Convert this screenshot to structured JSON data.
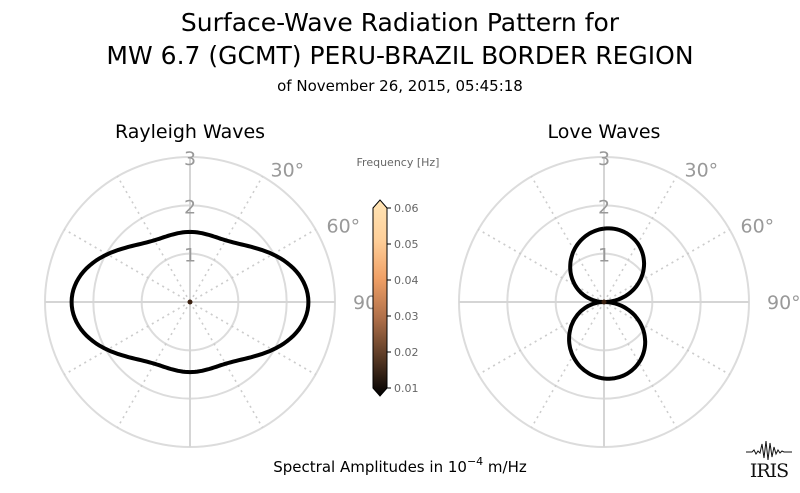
{
  "title": {
    "line1": "Surface-Wave Radiation Pattern for",
    "line2": "MW 6.7 (GCMT) PERU-BRAZIL BORDER REGION",
    "line3": "of November 26, 2015, 05:45:18"
  },
  "footer": {
    "prefix": "Spectral Amplitudes in 10",
    "exponent": "−4",
    "suffix": " m/Hz"
  },
  "logo": {
    "text": "IRIS"
  },
  "chart_data": [
    {
      "type": "polar-line",
      "title": "Rayleigh Waves",
      "radial_range": [
        0,
        3
      ],
      "radial_ticks": [
        "1",
        "2",
        "3"
      ],
      "angle_ticks": [
        "30°",
        "60°",
        "90°"
      ],
      "grid": true,
      "amplitude_model": {
        "a0": 1.8,
        "a2": 0.5,
        "phase2_deg": 0,
        "a4": 0.15,
        "phase4_deg": 0
      },
      "color": "#000000",
      "center_marker_color": "#3a2010"
    },
    {
      "type": "polar-line",
      "title": "Love Waves",
      "radial_range": [
        0,
        3
      ],
      "radial_ticks": [
        "1",
        "2",
        "3"
      ],
      "angle_ticks": [
        "30°",
        "60°",
        "90°"
      ],
      "grid": true,
      "amplitude_model": {
        "a0": 1.0,
        "a2": 0.0,
        "phase2_deg": 0,
        "a4": 0.0,
        "phase4_deg": 0,
        "lobe_amp": 1.55,
        "lobe_shift_deg": 10
      },
      "color": "#000000",
      "center_marker_color": "#3a2010"
    }
  ],
  "colorbar": {
    "label": "Frequency [Hz]",
    "ticks": [
      "0.06",
      "0.05",
      "0.04",
      "0.03",
      "0.02",
      "0.01"
    ],
    "range": [
      0.01,
      0.06
    ],
    "colors": [
      "#000000",
      "#5a3a25",
      "#b0704a",
      "#f0a066",
      "#ffd09a",
      "#ffe4b5"
    ]
  }
}
